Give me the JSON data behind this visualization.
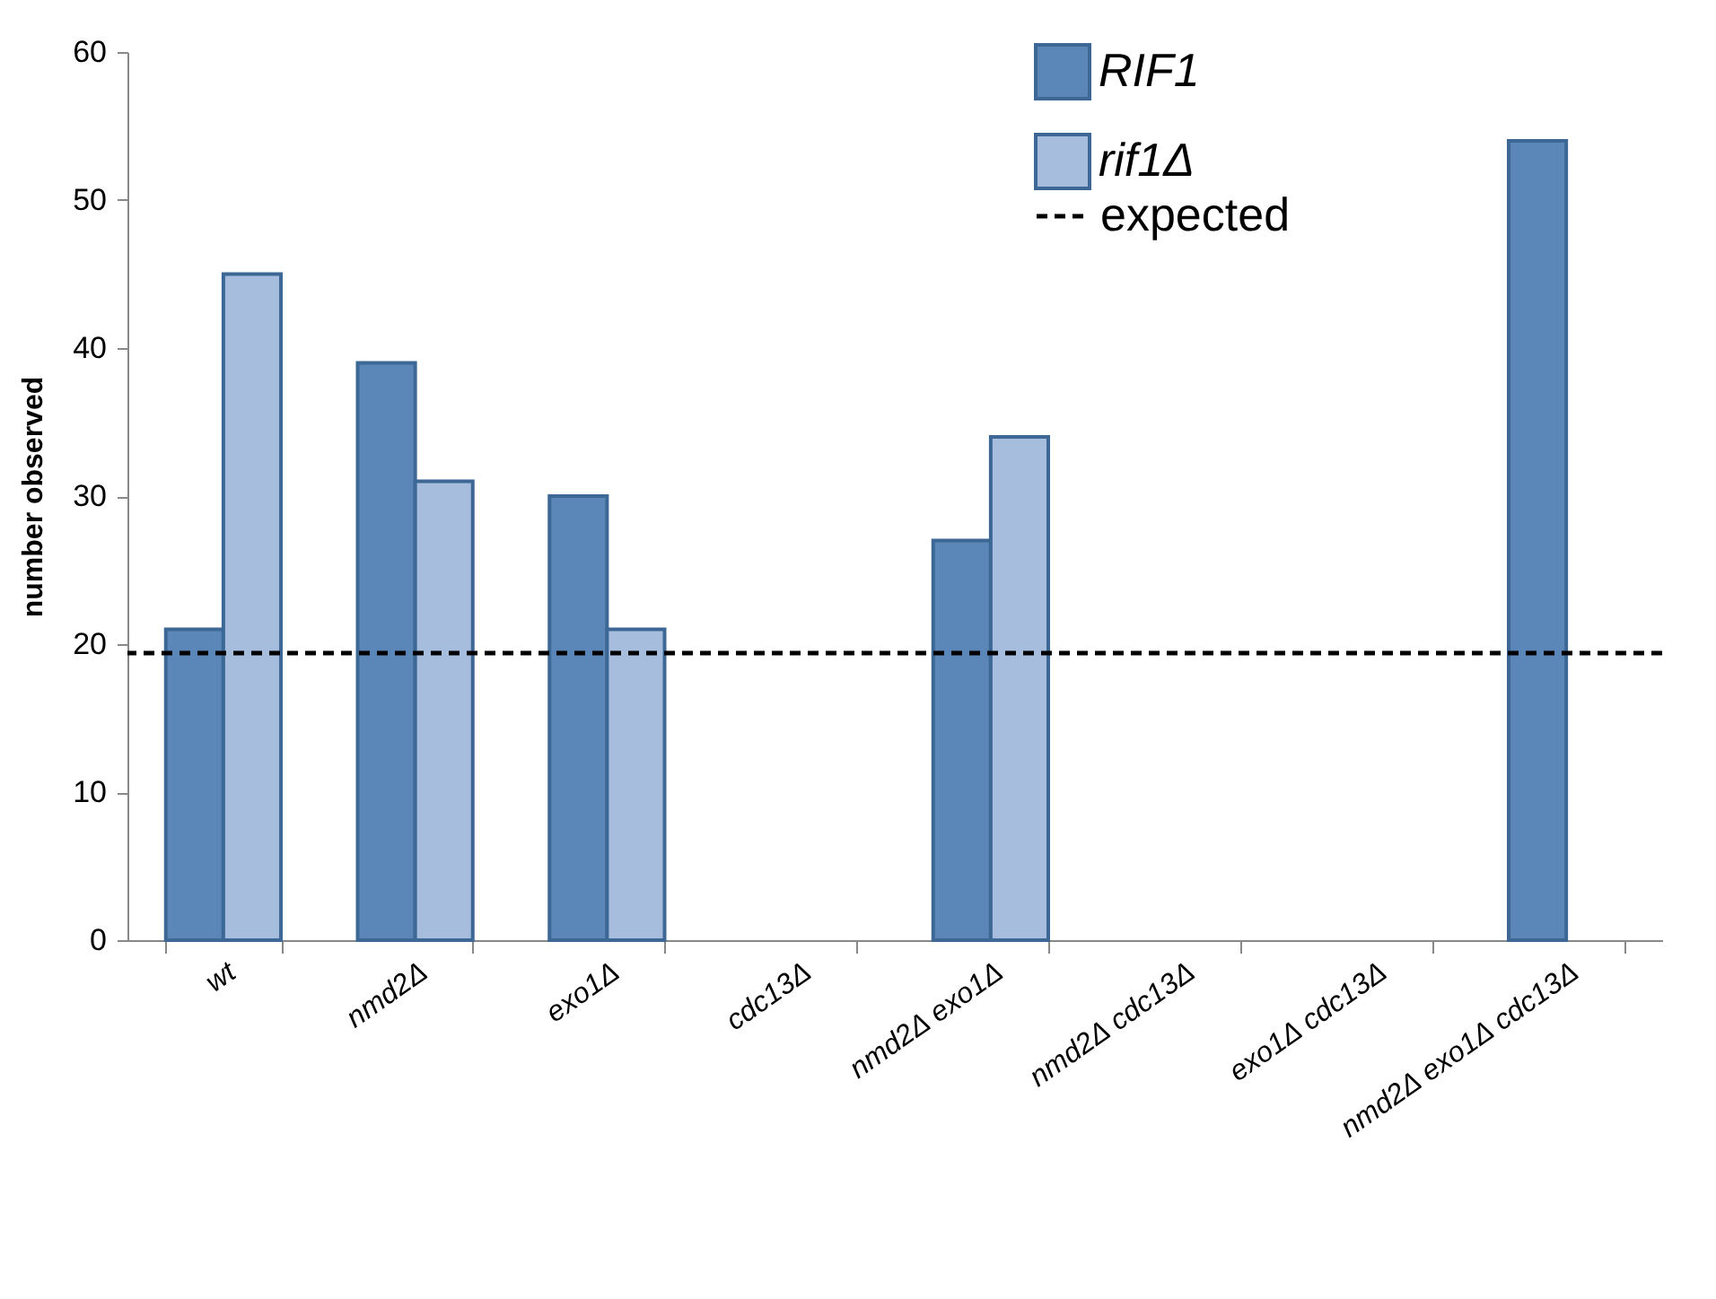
{
  "chart_data": {
    "type": "bar",
    "ylabel": "number observed",
    "categories": [
      "wt",
      "nmd2Δ",
      "exo1Δ",
      "cdc13Δ",
      "nmd2Δ exo1Δ",
      "nmd2Δ cdc13Δ",
      "exo1Δ cdc13Δ",
      "nmd2Δ exo1Δ cdc13Δ"
    ],
    "series": [
      {
        "name": "RIF1",
        "color": "#5b86b8",
        "values": [
          21,
          39,
          30,
          null,
          27,
          null,
          null,
          54
        ]
      },
      {
        "name": "rif1Δ",
        "color": "#a7bddd",
        "values": [
          45,
          31,
          21,
          null,
          34,
          null,
          null,
          null
        ]
      }
    ],
    "ylim": [
      0,
      60
    ],
    "yticks": [
      0,
      10,
      20,
      30,
      40,
      50,
      60
    ],
    "grid": false,
    "legend": "top right",
    "ref_lines": [
      {
        "axis": "y",
        "value": 19.4,
        "label": "expected",
        "color": "#000000",
        "line_style": "dashed"
      }
    ]
  }
}
